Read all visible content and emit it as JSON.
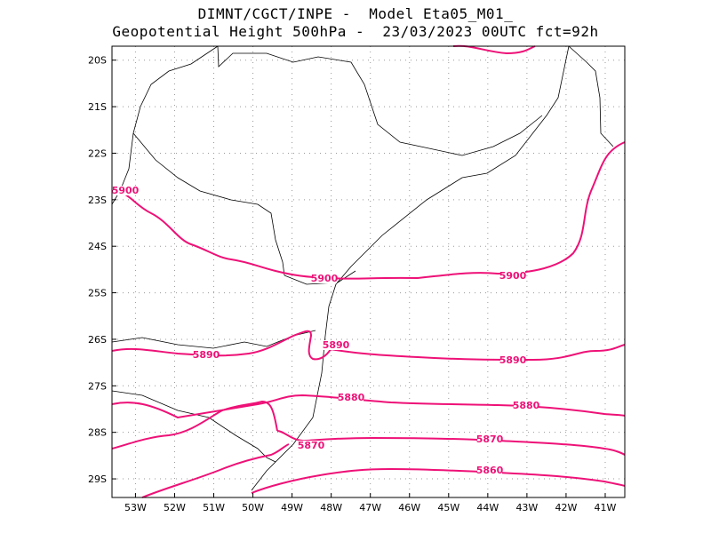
{
  "header": {
    "title_line1": "DIMNT/CGCT/INPE -  Model Eta05_M01_",
    "title_line2": "Geopotential Height 500hPa -  23/03/2023 00UTC fct=92h"
  },
  "colors": {
    "contour": "#ee1177",
    "coast": "#000000",
    "grid": "#999999"
  },
  "map": {
    "lon_range": [
      -53.6,
      -40.5
    ],
    "lat_range": [
      -29.4,
      -19.7
    ],
    "lon_ticks": [
      "53W",
      "52W",
      "51W",
      "50W",
      "49W",
      "48W",
      "47W",
      "46W",
      "45W",
      "44W",
      "43W",
      "42W",
      "41W"
    ],
    "lat_ticks": [
      "20S",
      "21S",
      "22S",
      "23S",
      "24S",
      "25S",
      "26S",
      "27S",
      "28S",
      "29S"
    ]
  },
  "contours": [
    {
      "value": 5900,
      "label": "5900",
      "labels": [
        "5900",
        "5900",
        "5900"
      ]
    },
    {
      "value": 5890,
      "label": "5890",
      "labels": [
        "5890",
        "5890",
        "5890"
      ]
    },
    {
      "value": 5880,
      "label": "5880",
      "labels": [
        "5880",
        "5880"
      ]
    },
    {
      "value": 5870,
      "label": "5870",
      "labels": [
        "5870",
        "5870"
      ]
    },
    {
      "value": 5860,
      "label": "5860",
      "labels": [
        "5860"
      ]
    }
  ]
}
